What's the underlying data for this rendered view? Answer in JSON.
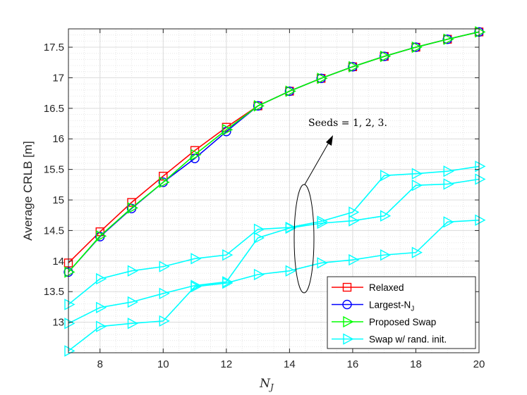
{
  "chart_data": {
    "type": "line",
    "xlabel_main": "N",
    "xlabel_sub": "J",
    "ylabel": "Average CRLB [m]",
    "xlim": [
      7,
      20
    ],
    "ylim": [
      12.5,
      17.8
    ],
    "xticks": [
      8,
      10,
      12,
      14,
      16,
      18,
      20
    ],
    "yticks": [
      13,
      13.5,
      14,
      14.5,
      15,
      15.5,
      16,
      16.5,
      17,
      17.5
    ],
    "ytick_labels": [
      "13",
      "13.5",
      "14",
      "14.5",
      "15",
      "15.5",
      "16",
      "16.5",
      "17",
      "17.5"
    ],
    "grid": true,
    "minor_grid": true,
    "legend_position": "bottom-right",
    "annotation": "Seeds = 1, 2, 3.",
    "series": [
      {
        "name": "Relaxed",
        "color": "#ff0000",
        "marker": "square",
        "x": [
          7,
          8,
          9,
          10,
          11,
          12,
          13,
          14,
          15,
          16,
          17,
          18,
          19,
          20
        ],
        "values": [
          13.97,
          14.48,
          14.96,
          15.39,
          15.81,
          16.19,
          16.54,
          16.78,
          16.99,
          17.18,
          17.35,
          17.5,
          17.63,
          17.75
        ]
      },
      {
        "name": "Largest-N",
        "name_sub": "J",
        "color": "#0000ff",
        "marker": "circle",
        "x": [
          7,
          8,
          9,
          10,
          11,
          12,
          13,
          14,
          15,
          16,
          17,
          18,
          19,
          20
        ],
        "values": [
          13.82,
          14.4,
          14.86,
          15.29,
          15.68,
          16.12,
          16.54,
          16.78,
          16.99,
          17.18,
          17.35,
          17.5,
          17.63,
          17.75
        ]
      },
      {
        "name": "Proposed Swap",
        "color": "#00ff00",
        "marker": "triangle-right",
        "x": [
          7,
          8,
          9,
          10,
          11,
          12,
          13,
          14,
          15,
          16,
          17,
          18,
          19,
          20
        ],
        "values": [
          13.82,
          14.41,
          14.87,
          15.29,
          15.74,
          16.15,
          16.54,
          16.78,
          16.99,
          17.18,
          17.35,
          17.5,
          17.63,
          17.75
        ]
      },
      {
        "name": "Swap w/ rand. init.",
        "color": "#00ffff",
        "marker": "triangle-right",
        "x": [
          7,
          8,
          9,
          10,
          11,
          12,
          13,
          14,
          15,
          16,
          17,
          18,
          19,
          20
        ],
        "values": [
          13.29,
          13.71,
          13.84,
          13.91,
          14.04,
          14.1,
          14.52,
          14.55,
          14.65,
          14.8,
          15.4,
          15.43,
          15.47,
          15.55
        ]
      },
      {
        "name": "",
        "color": "#00ffff",
        "marker": "triangle-right",
        "x": [
          7,
          8,
          9,
          10,
          11,
          12,
          13,
          14,
          15,
          16,
          17,
          18,
          19,
          20
        ],
        "values": [
          12.98,
          13.24,
          13.33,
          13.47,
          13.6,
          13.66,
          14.38,
          14.54,
          14.62,
          14.66,
          14.74,
          15.24,
          15.26,
          15.34
        ]
      },
      {
        "name": "",
        "color": "#00ffff",
        "marker": "triangle-right",
        "x": [
          7,
          8,
          9,
          10,
          11,
          12,
          13,
          14,
          15,
          16,
          17,
          18,
          19,
          20
        ],
        "values": [
          12.53,
          12.93,
          12.98,
          13.02,
          13.58,
          13.64,
          13.78,
          13.84,
          13.97,
          14.02,
          14.1,
          14.14,
          14.64,
          14.67
        ]
      }
    ]
  }
}
